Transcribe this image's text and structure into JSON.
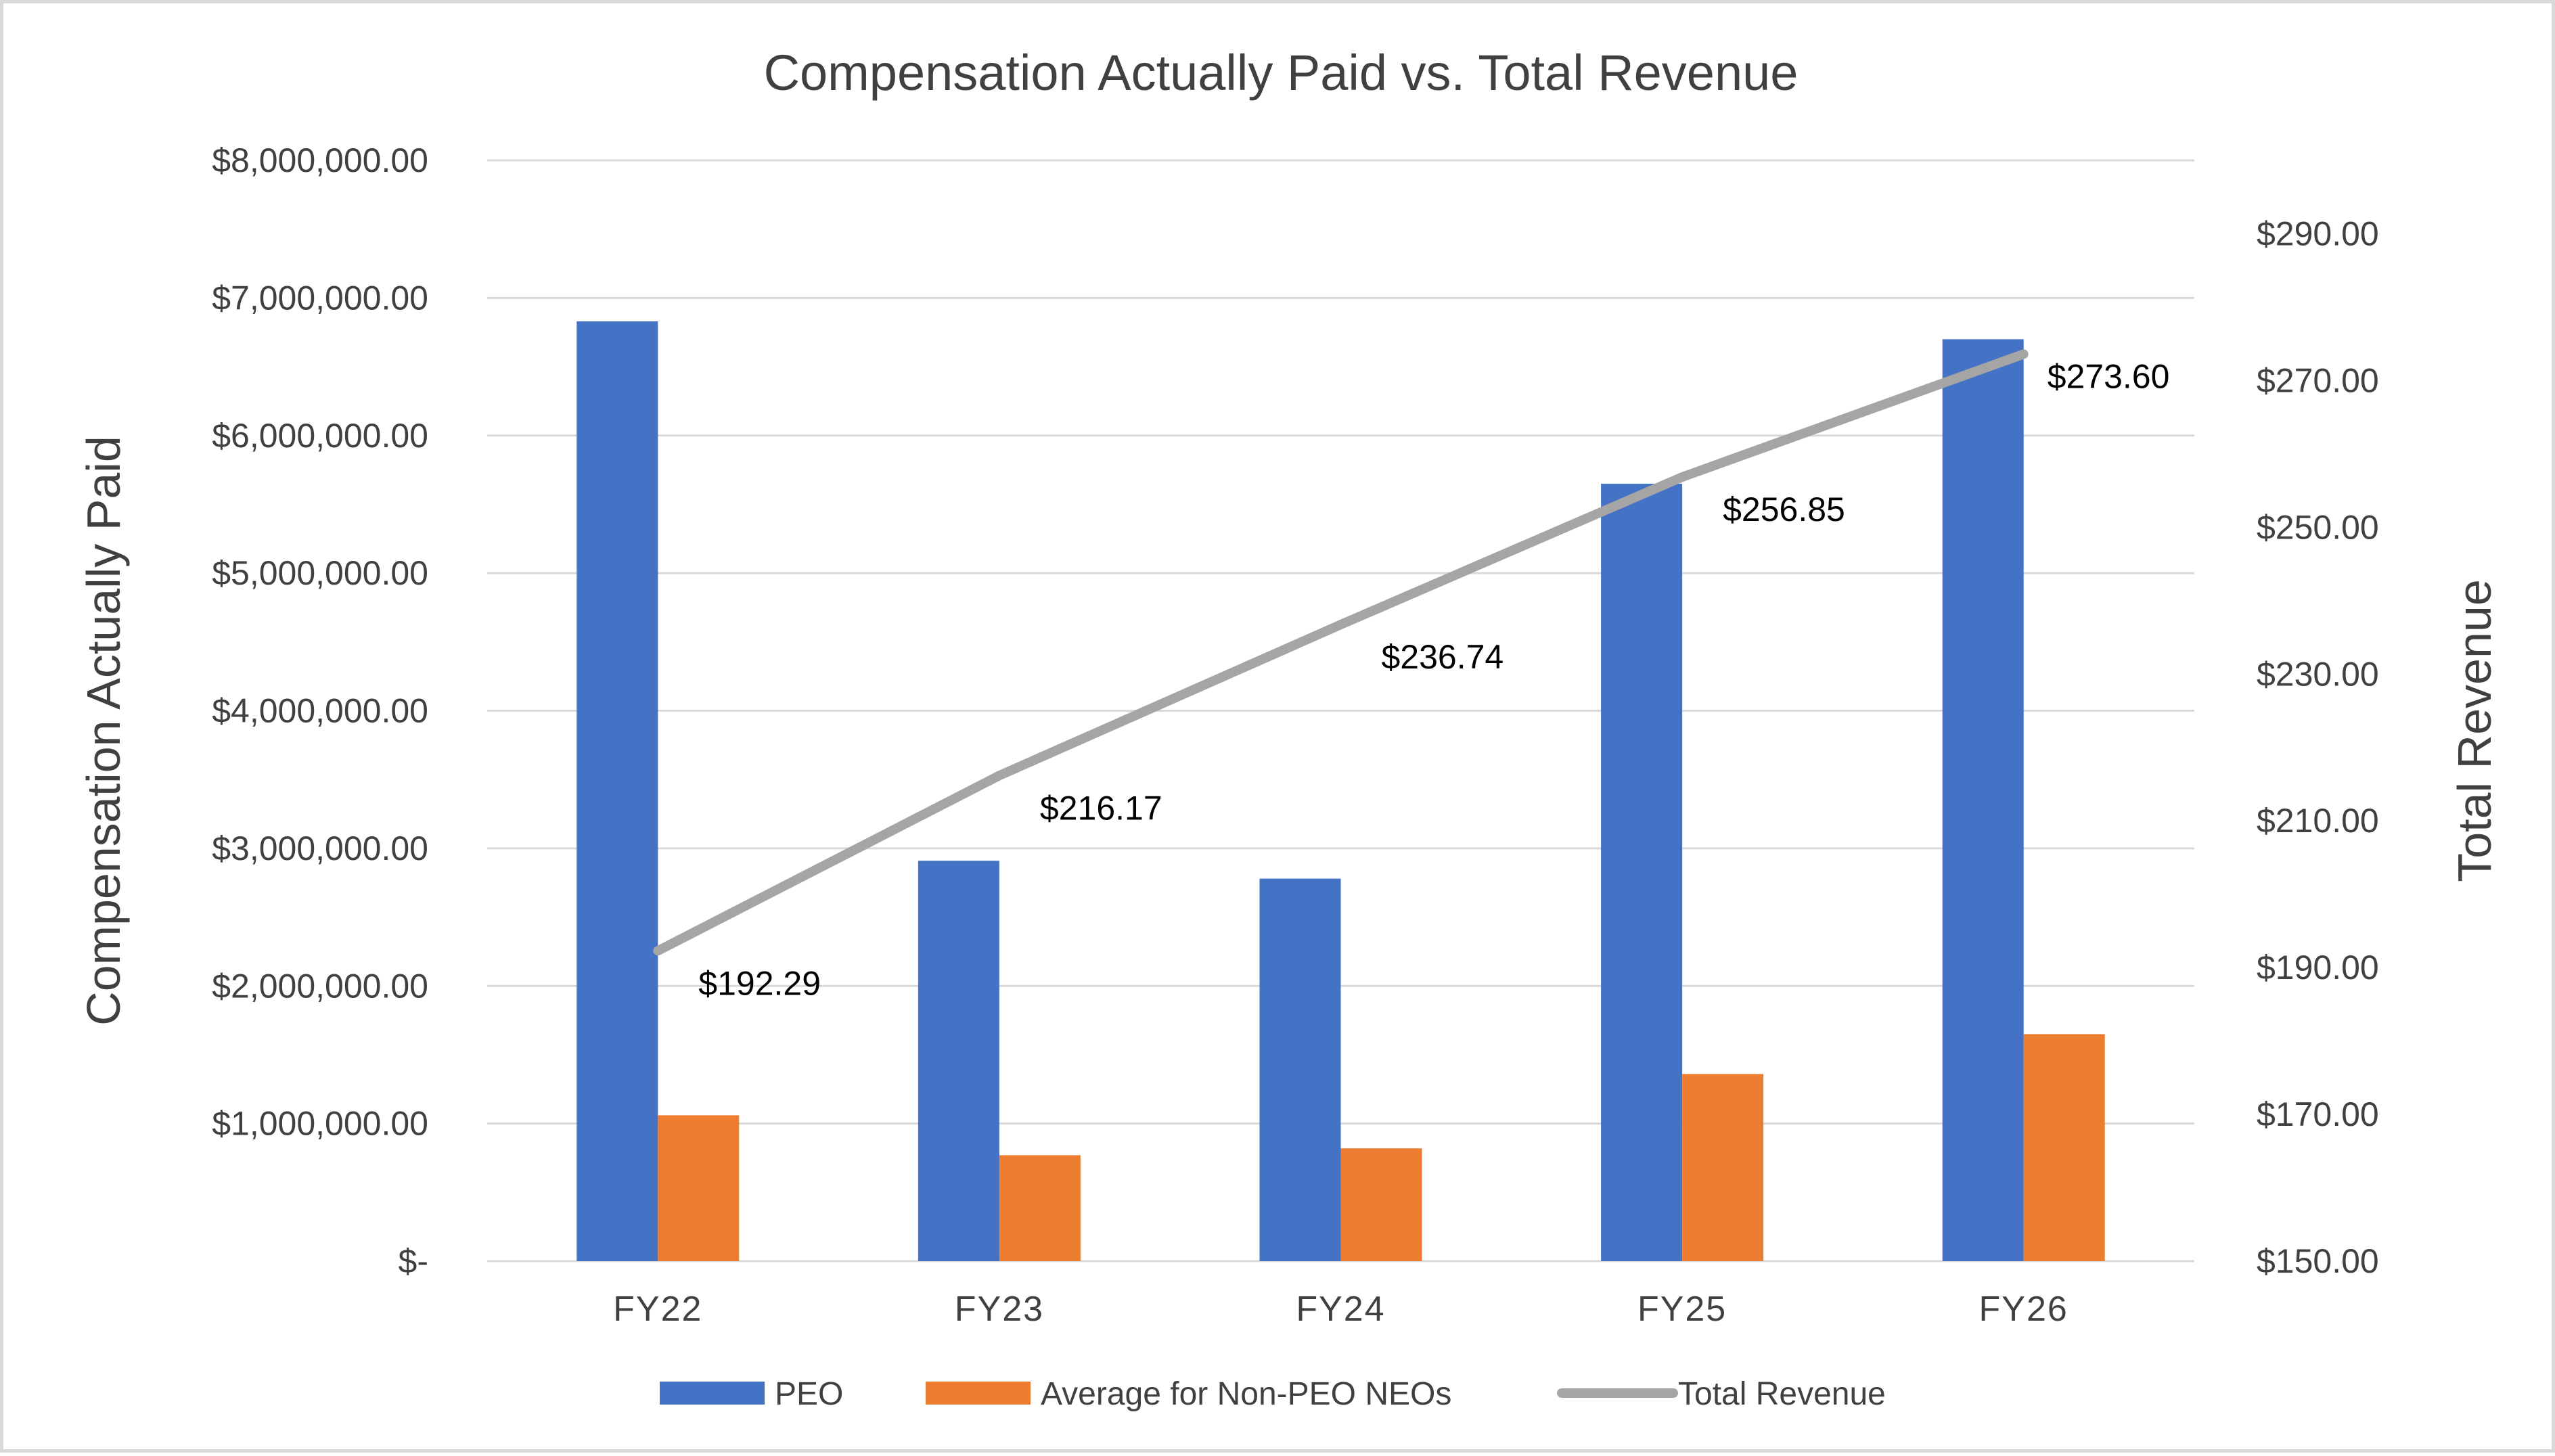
{
  "chart_data": {
    "type": "bar",
    "title": "Compensation Actually Paid vs. Total Revenue",
    "categories": [
      "FY22",
      "FY23",
      "FY24",
      "FY25",
      "FY26"
    ],
    "ylabel": "Compensation Actually Paid",
    "y2label": "Total Revenue",
    "ylim": [
      0,
      8000000
    ],
    "y2lim": [
      150,
      300
    ],
    "yticks": [
      "$-",
      "$1,000,000.00",
      "$2,000,000.00",
      "$3,000,000.00",
      "$4,000,000.00",
      "$5,000,000.00",
      "$6,000,000.00",
      "$7,000,000.00",
      "$8,000,000.00"
    ],
    "y2ticks": [
      "$150.00",
      "$170.00",
      "$190.00",
      "$210.00",
      "$230.00",
      "$250.00",
      "$270.00",
      "$290.00"
    ],
    "grid": true,
    "legend_position": "bottom",
    "series": [
      {
        "name": "PEO",
        "type": "bar",
        "axis": "left",
        "color": "#4472c4",
        "values": [
          6830000,
          2910000,
          2780000,
          5650000,
          6700000
        ]
      },
      {
        "name": "Average for Non-PEO NEOs",
        "type": "bar",
        "axis": "left",
        "color": "#ed7d31",
        "values": [
          1060000,
          770000,
          820000,
          1360000,
          1650000
        ]
      },
      {
        "name": "Total Revenue",
        "type": "line",
        "axis": "right",
        "color": "#a5a5a5",
        "values": [
          192.29,
          216.17,
          236.74,
          256.85,
          273.6
        ],
        "labels": [
          "$192.29",
          "$216.17",
          "$236.74",
          "$256.85",
          "$273.60"
        ]
      }
    ]
  }
}
